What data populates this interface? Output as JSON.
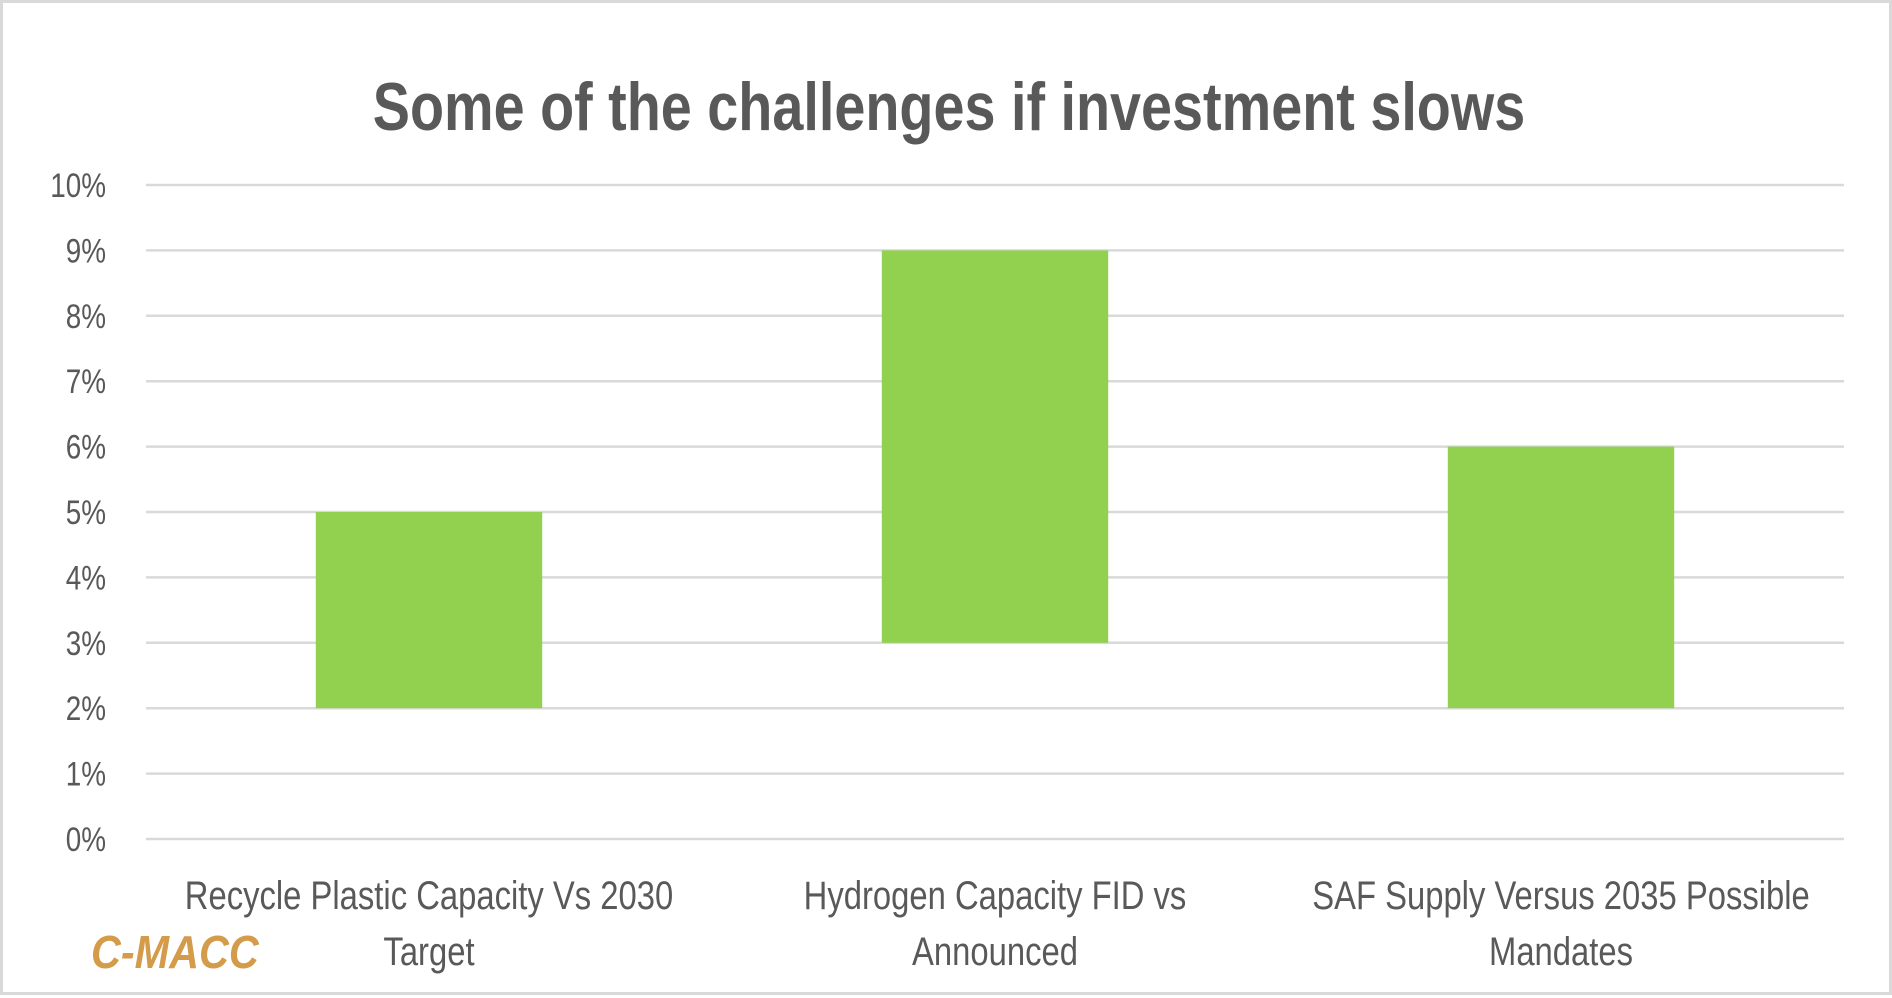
{
  "chart_data": {
    "type": "bar",
    "subtype": "floating-range",
    "title": "Some of the challenges if investment slows",
    "xlabel": "",
    "ylabel": "",
    "categories": [
      [
        "Recycle Plastic Capacity Vs 2030",
        "Target"
      ],
      [
        "Hydrogen Capacity FID vs",
        "Announced"
      ],
      [
        "SAF Supply Versus 2035 Possible",
        "Mandates"
      ]
    ],
    "category_names": [
      "Recycle Plastic Capacity Vs 2030 Target",
      "Hydrogen Capacity FID vs Announced",
      "SAF Supply Versus 2035 Possible Mandates"
    ],
    "series": [
      {
        "name": "Range",
        "low": [
          2,
          3,
          2
        ],
        "high": [
          5,
          9,
          6
        ],
        "color": "#92D050"
      }
    ],
    "ylim": [
      0,
      10
    ],
    "yticks": [
      0,
      1,
      2,
      3,
      4,
      5,
      6,
      7,
      8,
      9,
      10
    ],
    "ytick_labels": [
      "0%",
      "1%",
      "2%",
      "3%",
      "4%",
      "5%",
      "6%",
      "7%",
      "8%",
      "9%",
      "10%"
    ],
    "grid": true,
    "legend": "none"
  },
  "branding": {
    "logo_text": "C-MACC",
    "logo_color": "#D39B4A"
  },
  "colors": {
    "text": "#595959",
    "grid": "#D9D9D9",
    "bar": "#92D050"
  }
}
